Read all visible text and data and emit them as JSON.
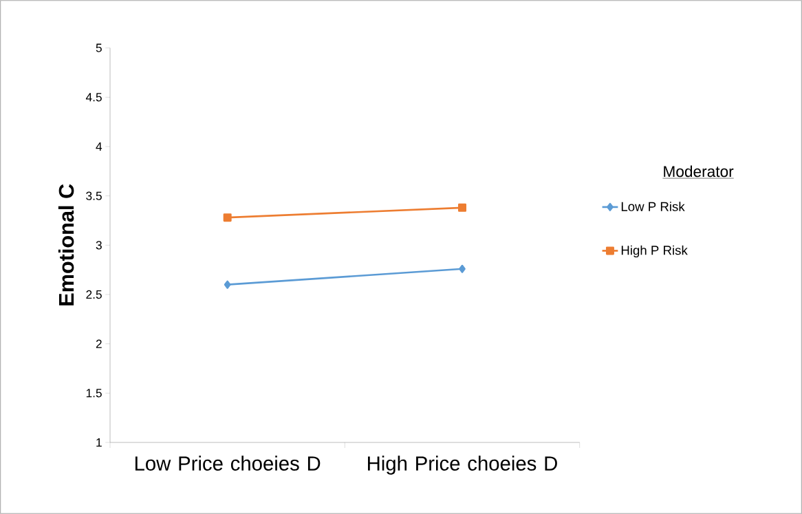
{
  "chart_data": {
    "type": "line",
    "ylabel": "Emotional C",
    "legend_title": "Moderator",
    "legend": "right",
    "categories": [
      "Low Price choeies D",
      "High Price choeies D"
    ],
    "series": [
      {
        "name": "Low P Risk",
        "color": "#5b9bd5",
        "marker": "diamond",
        "values": [
          2.6,
          2.76
        ]
      },
      {
        "name": "High P Risk",
        "color": "#ed7d31",
        "marker": "square",
        "values": [
          3.28,
          3.38
        ]
      }
    ],
    "ylim": [
      1,
      5
    ],
    "yticks": [
      1,
      1.5,
      2,
      2.5,
      3,
      3.5,
      4,
      4.5,
      5
    ]
  }
}
